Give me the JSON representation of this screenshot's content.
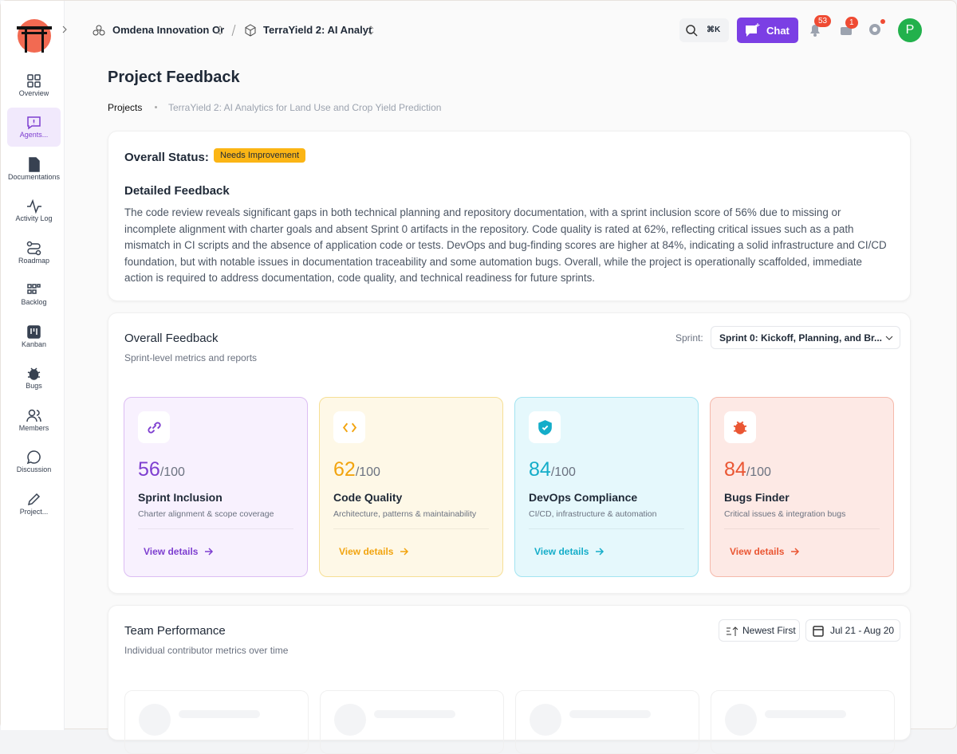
{
  "sidebar": {
    "items": [
      {
        "label": "Overview",
        "icon": "grid"
      },
      {
        "label": "Agents...",
        "icon": "chat",
        "active": true
      },
      {
        "label": "Documentations",
        "icon": "doc"
      },
      {
        "label": "Activity Log",
        "icon": "pulse"
      },
      {
        "label": "Roadmap",
        "icon": "route"
      },
      {
        "label": "Backlog",
        "icon": "backlog"
      },
      {
        "label": "Kanban",
        "icon": "kanban"
      },
      {
        "label": "Bugs",
        "icon": "bug"
      },
      {
        "label": "Members",
        "icon": "users"
      },
      {
        "label": "Discussion",
        "icon": "bubble"
      },
      {
        "label": "Project...",
        "icon": "pen"
      }
    ]
  },
  "topbar": {
    "org": "Omdena Innovation Or",
    "project": "TerraYield 2: AI Analyt",
    "search_shortcut": "⌘K",
    "chat": "Chat",
    "notifications": 53,
    "messages": 1,
    "avatar": "P"
  },
  "header": {
    "title": "Project Feedback",
    "breadcrumb": [
      "Projects",
      "TerraYield 2: AI Analytics for Land Use and Crop Yield Prediction"
    ]
  },
  "status": {
    "label": "Overall Status:",
    "badge": "Needs Improvement",
    "heading": "Detailed Feedback",
    "text": "The code review reveals significant gaps in both technical planning and repository documentation, with a sprint inclusion score of 56% due to missing or incomplete alignment with charter goals and absent Sprint 0 artifacts in the repository. Code quality is rated at 62%, reflecting critical issues such as a path mismatch in CI scripts and the absence of application code or tests. DevOps and bug-finding scores are higher at 84%, indicating a solid infrastructure and CI/CD foundation, but with notable issues in documentation traceability and some automation bugs. Overall, while the project is operationally scaffolded, immediate action is required to address documentation, code quality, and technical readiness for future sprints."
  },
  "overall": {
    "title": "Overall Feedback",
    "subtitle": "Sprint-level metrics and reports",
    "sprint_label": "Sprint:",
    "sprint_value": "Sprint 0: Kickoff, Planning, and Br...",
    "cards": [
      {
        "score": 56,
        "max": "/100",
        "name": "Sprint Inclusion",
        "description": "Charter alignment & scope coverage",
        "link": "View details",
        "color": "#7e3fd0",
        "background": "#f8f1fe",
        "border": "#dcbdf3",
        "icon": "link"
      },
      {
        "score": 62,
        "max": "/100",
        "name": "Code Quality",
        "description": "Architecture, patterns & maintainability",
        "link": "View details",
        "color": "#f2a40f",
        "background": "#fef8e7",
        "border": "#f6df95",
        "icon": "code"
      },
      {
        "score": 84,
        "max": "/100",
        "name": "DevOps Compliance",
        "description": "CI/CD, infrastructure & automation",
        "link": "View details",
        "color": "#14adc9",
        "background": "#e5f8fc",
        "border": "#a3e4f1",
        "icon": "shield"
      },
      {
        "score": 84,
        "max": "/100",
        "name": "Bugs Finder",
        "description": "Critical issues & integration bugs",
        "link": "View details",
        "color": "#ea5633",
        "background": "#fde9e5",
        "border": "#f5b9ab",
        "icon": "bug"
      }
    ]
  },
  "team": {
    "title": "Team Performance",
    "subtitle": "Individual contributor metrics over time",
    "sort": "Newest First",
    "range": "Jul 21 - Aug 20"
  }
}
